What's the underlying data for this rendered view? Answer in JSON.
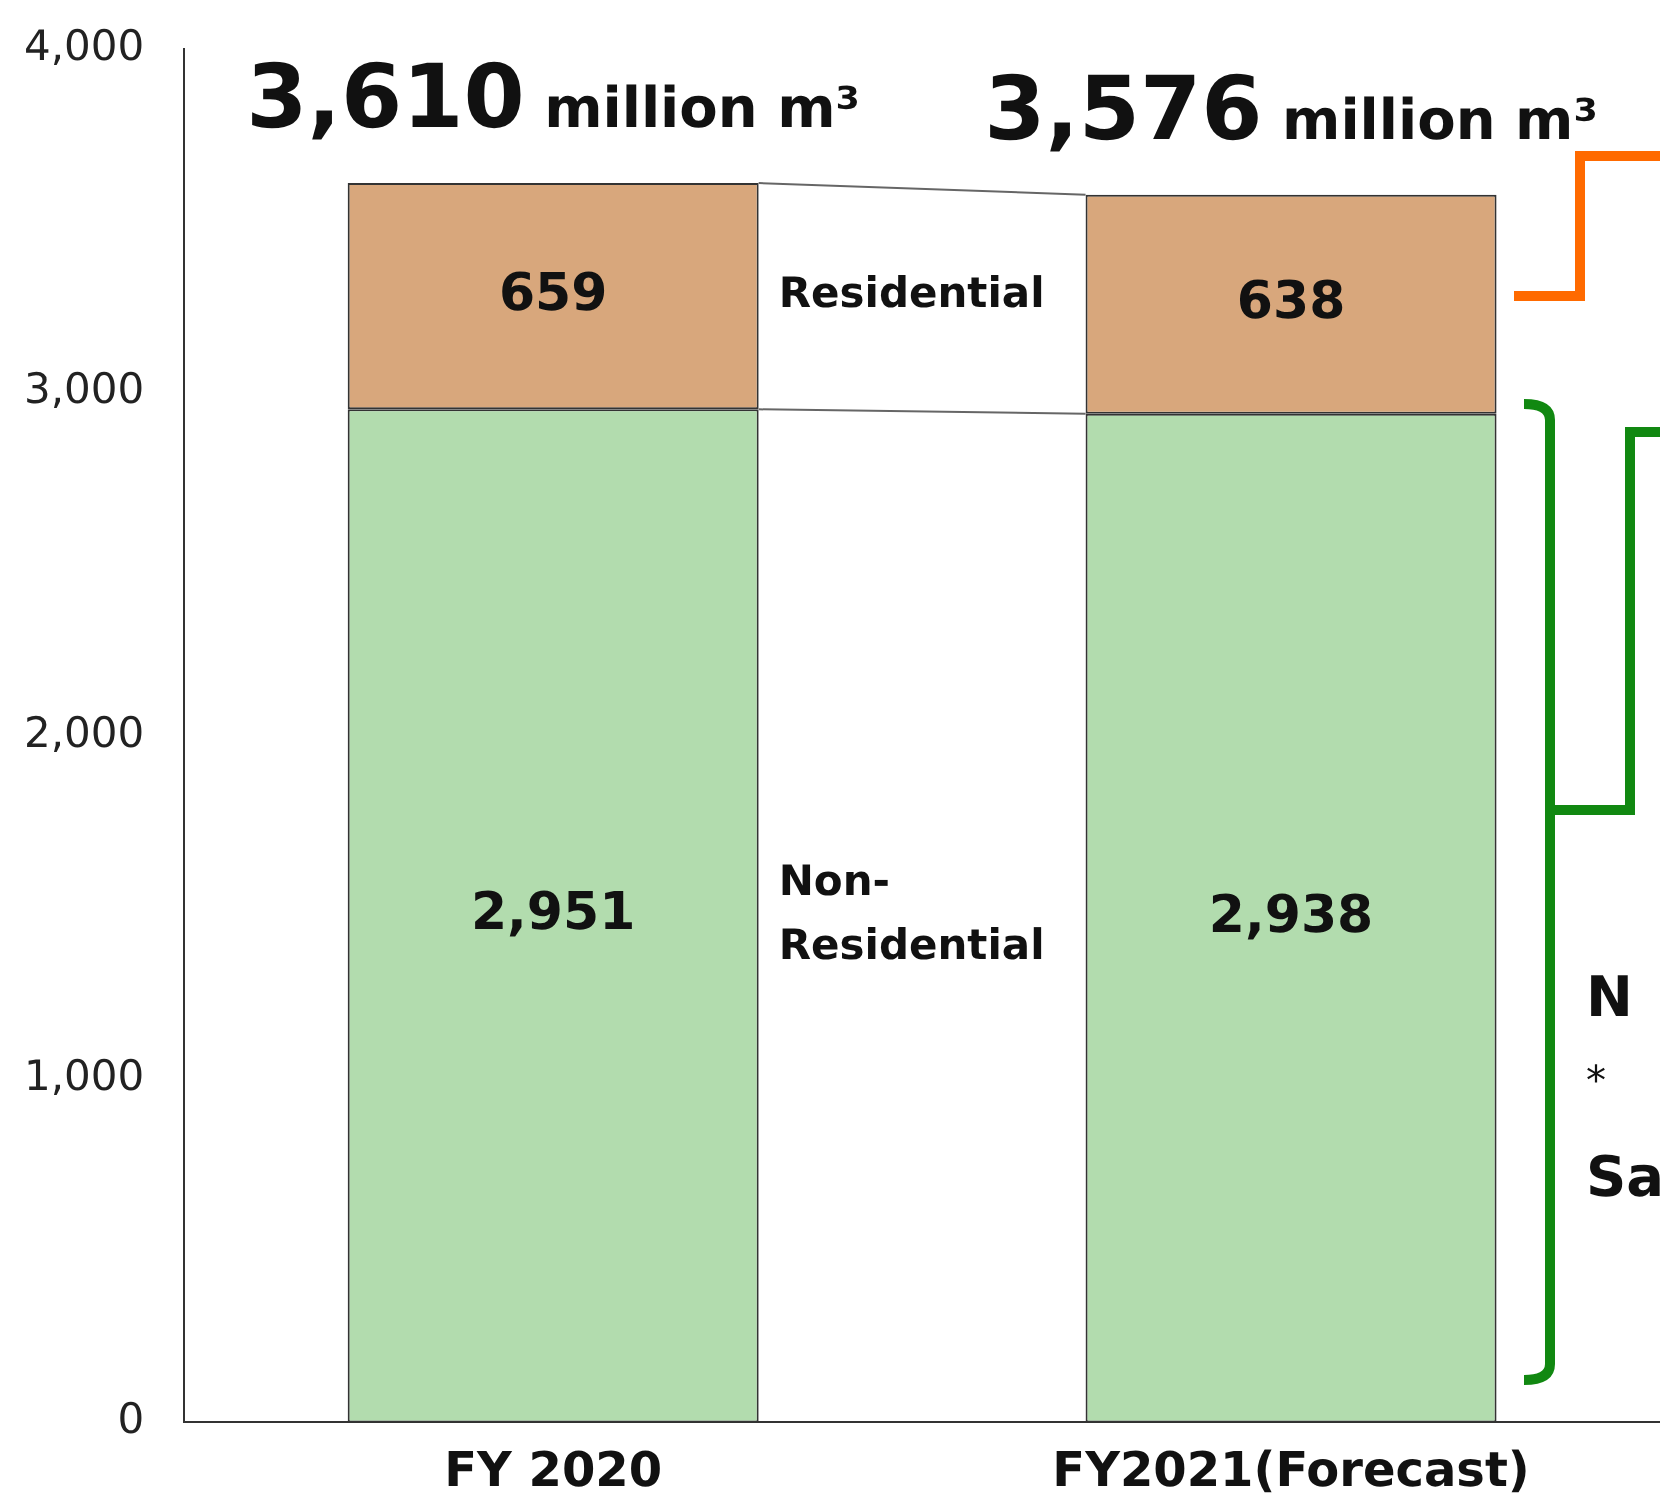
{
  "chart_data": {
    "type": "bar",
    "stacked": true,
    "categories": [
      "FY 2020",
      "FY2021(Forecast)"
    ],
    "series": [
      {
        "name": "Non-Residential",
        "color": "#b2dcae",
        "values": [
          2951,
          2938
        ],
        "value_labels": [
          "2,951",
          "2,938"
        ]
      },
      {
        "name": "Residential",
        "color": "#d8a77c",
        "values": [
          659,
          638
        ],
        "value_labels": [
          "659",
          "638"
        ]
      }
    ],
    "totals": [
      "3,610 million m³",
      "3,576 million m³"
    ],
    "ylim": [
      0,
      4000
    ],
    "yticks": [
      {
        "value": 0,
        "label": "0"
      },
      {
        "value": 1000,
        "label": "1,000"
      },
      {
        "value": 2000,
        "label": "2,000"
      },
      {
        "value": 3000,
        "label": "3,000"
      },
      {
        "value": 4000,
        "label": "4,000"
      }
    ],
    "grid": false,
    "legend": false,
    "annotations": [
      "N",
      "*",
      "Sa"
    ]
  }
}
